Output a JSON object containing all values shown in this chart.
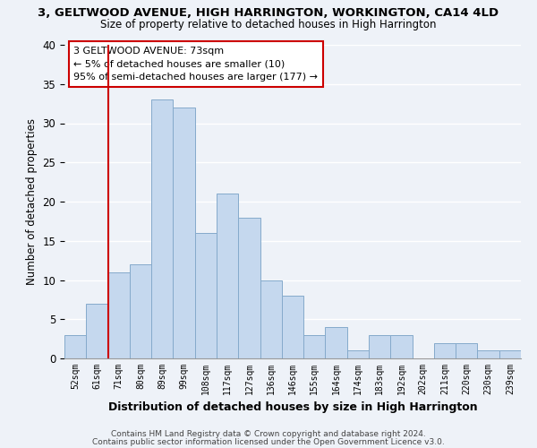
{
  "title": "3, GELTWOOD AVENUE, HIGH HARRINGTON, WORKINGTON, CA14 4LD",
  "subtitle": "Size of property relative to detached houses in High Harrington",
  "xlabel": "Distribution of detached houses by size in High Harrington",
  "ylabel": "Number of detached properties",
  "bar_labels": [
    "52sqm",
    "61sqm",
    "71sqm",
    "80sqm",
    "89sqm",
    "99sqm",
    "108sqm",
    "117sqm",
    "127sqm",
    "136sqm",
    "146sqm",
    "155sqm",
    "164sqm",
    "174sqm",
    "183sqm",
    "192sqm",
    "202sqm",
    "211sqm",
    "220sqm",
    "230sqm",
    "239sqm"
  ],
  "bar_values": [
    3,
    7,
    11,
    12,
    33,
    32,
    16,
    21,
    18,
    10,
    8,
    3,
    4,
    1,
    3,
    3,
    0,
    2,
    2,
    1,
    1
  ],
  "bar_color": "#c5d8ee",
  "bar_edge_color": "#85aacb",
  "background_color": "#eef2f8",
  "grid_color": "#ffffff",
  "ylim": [
    0,
    40
  ],
  "yticks": [
    0,
    5,
    10,
    15,
    20,
    25,
    30,
    35,
    40
  ],
  "vline_x": 1.5,
  "vline_color": "#cc0000",
  "annotation_title": "3 GELTWOOD AVENUE: 73sqm",
  "annotation_line1": "← 5% of detached houses are smaller (10)",
  "annotation_line2": "95% of semi-detached houses are larger (177) →",
  "annotation_box_color": "#ffffff",
  "annotation_box_edge": "#cc0000",
  "footer1": "Contains HM Land Registry data © Crown copyright and database right 2024.",
  "footer2": "Contains public sector information licensed under the Open Government Licence v3.0."
}
